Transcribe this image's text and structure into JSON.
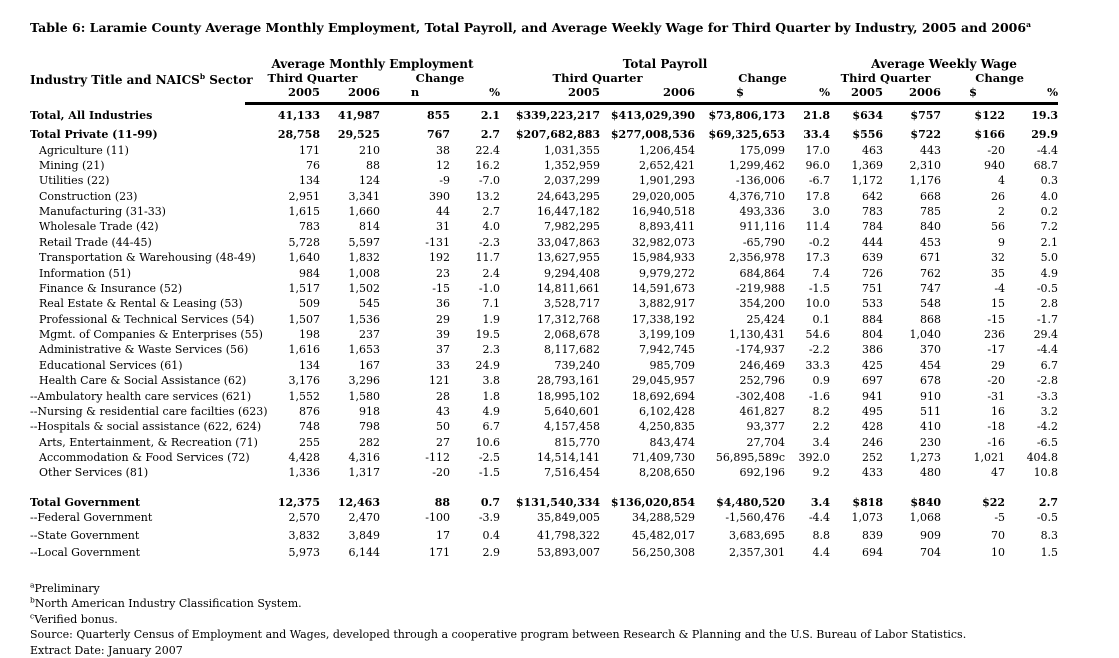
{
  "table": {
    "title": {
      "main": "Table 6:  Laramie County Average Monthly Employment, Total Payroll, and Average Weekly Wage for Third Quarter by Industry, 2005 and 2006",
      "sup": "a"
    },
    "header": {
      "industry_col": {
        "pre": "Industry Title and NAICS",
        "sup": "b",
        "post": " Sector"
      },
      "groups": [
        "Average Monthly Employment",
        "Total Payroll",
        "Average Weekly Wage"
      ],
      "sub": {
        "third_quarter": "Third Quarter",
        "change": "Change"
      },
      "cols": [
        "2005",
        "2006",
        "n",
        "%",
        "2005",
        "2006",
        "$",
        "%",
        "2005",
        "2006",
        "$",
        "%"
      ]
    },
    "rows": [
      {
        "label": "Total, All Industries",
        "bold": true,
        "indent": false,
        "gap": "",
        "values": [
          "41,133",
          "41,987",
          "855",
          "2.1",
          "$339,223,217",
          "$413,029,390",
          "$73,806,173",
          "21.8",
          "$634",
          "$757",
          "$122",
          "19.3"
        ]
      },
      {
        "label": "Total Private (11-99)",
        "bold": true,
        "indent": false,
        "gap": "gap-sm",
        "values": [
          "28,758",
          "29,525",
          "767",
          "2.7",
          "$207,682,883",
          "$277,008,536",
          "$69,325,653",
          "33.4",
          "$556",
          "$722",
          "$166",
          "29.9"
        ]
      },
      {
        "label": "Agriculture (11)",
        "bold": false,
        "indent": true,
        "gap": "",
        "values": [
          "171",
          "210",
          "38",
          "22.4",
          "1,031,355",
          "1,206,454",
          "175,099",
          "17.0",
          "463",
          "443",
          "-20",
          "-4.4"
        ]
      },
      {
        "label": "Mining (21)",
        "bold": false,
        "indent": true,
        "gap": "",
        "values": [
          "76",
          "88",
          "12",
          "16.2",
          "1,352,959",
          "2,652,421",
          "1,299,462",
          "96.0",
          "1,369",
          "2,310",
          "940",
          "68.7"
        ]
      },
      {
        "label": "Utilities (22)",
        "bold": false,
        "indent": true,
        "gap": "",
        "values": [
          "134",
          "124",
          "-9",
          "-7.0",
          "2,037,299",
          "1,901,293",
          "-136,006",
          "-6.7",
          "1,172",
          "1,176",
          "4",
          "0.3"
        ]
      },
      {
        "label": "Construction (23)",
        "bold": false,
        "indent": true,
        "gap": "",
        "values": [
          "2,951",
          "3,341",
          "390",
          "13.2",
          "24,643,295",
          "29,020,005",
          "4,376,710",
          "17.8",
          "642",
          "668",
          "26",
          "4.0"
        ]
      },
      {
        "label": "Manufacturing (31-33)",
        "bold": false,
        "indent": true,
        "gap": "",
        "values": [
          "1,615",
          "1,660",
          "44",
          "2.7",
          "16,447,182",
          "16,940,518",
          "493,336",
          "3.0",
          "783",
          "785",
          "2",
          "0.2"
        ]
      },
      {
        "label": "Wholesale Trade (42)",
        "bold": false,
        "indent": true,
        "gap": "",
        "values": [
          "783",
          "814",
          "31",
          "4.0",
          "7,982,295",
          "8,893,411",
          "911,116",
          "11.4",
          "784",
          "840",
          "56",
          "7.2"
        ]
      },
      {
        "label": "Retail Trade (44-45)",
        "bold": false,
        "indent": true,
        "gap": "",
        "values": [
          "5,728",
          "5,597",
          "-131",
          "-2.3",
          "33,047,863",
          "32,982,073",
          "-65,790",
          "-0.2",
          "444",
          "453",
          "9",
          "2.1"
        ]
      },
      {
        "label": "Transportation & Warehousing (48-49)",
        "bold": false,
        "indent": true,
        "gap": "",
        "values": [
          "1,640",
          "1,832",
          "192",
          "11.7",
          "13,627,955",
          "15,984,933",
          "2,356,978",
          "17.3",
          "639",
          "671",
          "32",
          "5.0"
        ]
      },
      {
        "label": "Information (51)",
        "bold": false,
        "indent": true,
        "gap": "",
        "values": [
          "984",
          "1,008",
          "23",
          "2.4",
          "9,294,408",
          "9,979,272",
          "684,864",
          "7.4",
          "726",
          "762",
          "35",
          "4.9"
        ]
      },
      {
        "label": "Finance & Insurance (52)",
        "bold": false,
        "indent": true,
        "gap": "",
        "values": [
          "1,517",
          "1,502",
          "-15",
          "-1.0",
          "14,811,661",
          "14,591,673",
          "-219,988",
          "-1.5",
          "751",
          "747",
          "-4",
          "-0.5"
        ]
      },
      {
        "label": "Real Estate & Rental & Leasing (53)",
        "bold": false,
        "indent": true,
        "gap": "",
        "values": [
          "509",
          "545",
          "36",
          "7.1",
          "3,528,717",
          "3,882,917",
          "354,200",
          "10.0",
          "533",
          "548",
          "15",
          "2.8"
        ]
      },
      {
        "label": "Professional & Technical Services (54)",
        "bold": false,
        "indent": true,
        "gap": "",
        "values": [
          "1,507",
          "1,536",
          "29",
          "1.9",
          "17,312,768",
          "17,338,192",
          "25,424",
          "0.1",
          "884",
          "868",
          "-15",
          "-1.7"
        ]
      },
      {
        "label": "Mgmt. of Companies & Enterprises (55)",
        "bold": false,
        "indent": true,
        "gap": "",
        "values": [
          "198",
          "237",
          "39",
          "19.5",
          "2,068,678",
          "3,199,109",
          "1,130,431",
          "54.6",
          "804",
          "1,040",
          "236",
          "29.4"
        ]
      },
      {
        "label": "Administrative & Waste Services (56)",
        "bold": false,
        "indent": true,
        "gap": "",
        "values": [
          "1,616",
          "1,653",
          "37",
          "2.3",
          "8,117,682",
          "7,942,745",
          "-174,937",
          "-2.2",
          "386",
          "370",
          "-17",
          "-4.4"
        ]
      },
      {
        "label": "Educational Services (61)",
        "bold": false,
        "indent": true,
        "gap": "",
        "values": [
          "134",
          "167",
          "33",
          "24.9",
          "739,240",
          "985,709",
          "246,469",
          "33.3",
          "425",
          "454",
          "29",
          "6.7"
        ]
      },
      {
        "label": "Health Care & Social Assistance (62)",
        "bold": false,
        "indent": true,
        "gap": "",
        "values": [
          "3,176",
          "3,296",
          "121",
          "3.8",
          "28,793,161",
          "29,045,957",
          "252,796",
          "0.9",
          "697",
          "678",
          "-20",
          "-2.8"
        ]
      },
      {
        "label": "--Ambulatory health care services (621)",
        "bold": false,
        "indent": false,
        "gap": "",
        "values": [
          "1,552",
          "1,580",
          "28",
          "1.8",
          "18,995,102",
          "18,692,694",
          "-302,408",
          "-1.6",
          "941",
          "910",
          "-31",
          "-3.3"
        ]
      },
      {
        "label": "--Nursing & residential care facilties (623)",
        "bold": false,
        "indent": false,
        "gap": "",
        "values": [
          "876",
          "918",
          "43",
          "4.9",
          "5,640,601",
          "6,102,428",
          "461,827",
          "8.2",
          "495",
          "511",
          "16",
          "3.2"
        ]
      },
      {
        "label": "--Hospitals & social assistance (622, 624)",
        "bold": false,
        "indent": false,
        "gap": "",
        "values": [
          "748",
          "798",
          "50",
          "6.7",
          "4,157,458",
          "4,250,835",
          "93,377",
          "2.2",
          "428",
          "410",
          "-18",
          "-4.2"
        ]
      },
      {
        "label": "Arts, Entertainment, & Recreation (71)",
        "bold": false,
        "indent": true,
        "gap": "",
        "values": [
          "255",
          "282",
          "27",
          "10.6",
          "815,770",
          "843,474",
          "27,704",
          "3.4",
          "246",
          "230",
          "-16",
          "-6.5"
        ]
      },
      {
        "label": "Accommodation & Food Services (72)",
        "bold": false,
        "indent": true,
        "gap": "",
        "values": [
          "4,428",
          "4,316",
          "-112",
          "-2.5",
          "14,514,141",
          "71,409,730",
          "56,895,589c",
          "392.0",
          "252",
          "1,273",
          "1,021",
          "404.8"
        ]
      },
      {
        "label": "Other Services  (81)",
        "bold": false,
        "indent": true,
        "gap": "",
        "values": [
          "1,336",
          "1,317",
          "-20",
          "-1.5",
          "7,516,454",
          "8,208,650",
          "692,196",
          "9.2",
          "433",
          "480",
          "47",
          "10.8"
        ]
      },
      {
        "label": "Total Government",
        "bold": true,
        "indent": false,
        "gap": "gap-lg",
        "values": [
          "12,375",
          "12,463",
          "88",
          "0.7",
          "$131,540,334",
          "$136,020,854",
          "$4,480,520",
          "3.4",
          "$818",
          "$840",
          "$22",
          "2.7"
        ]
      },
      {
        "label": "--Federal Government",
        "bold": false,
        "indent": false,
        "gap": "",
        "values": [
          "2,570",
          "2,470",
          "-100",
          "-3.9",
          "35,849,005",
          "34,288,529",
          "-1,560,476",
          "-4.4",
          "1,073",
          "1,068",
          "-5",
          "-0.5"
        ]
      },
      {
        "label": "--State Government",
        "bold": false,
        "indent": false,
        "gap": "gap-xs",
        "values": [
          "3,832",
          "3,849",
          "17",
          "0.4",
          "41,798,322",
          "45,482,017",
          "3,683,695",
          "8.8",
          "839",
          "909",
          "70",
          "8.3"
        ]
      },
      {
        "label": "--Local Government",
        "bold": false,
        "indent": false,
        "gap": "gap-xs",
        "values": [
          "5,973",
          "6,144",
          "171",
          "2.9",
          "53,893,007",
          "56,250,308",
          "2,357,301",
          "4.4",
          "694",
          "704",
          "10",
          "1.5"
        ]
      }
    ],
    "footnotes": [
      {
        "sup": "a",
        "text": "Preliminary"
      },
      {
        "sup": "b",
        "text": "North American Industry Classification System."
      },
      {
        "sup": "c",
        "text": "Verified bonus."
      },
      {
        "sup": "",
        "text": "Source: Quarterly Census of Employment and Wages, developed through a cooperative program between Research & Planning and the U.S. Bureau of Labor Statistics."
      },
      {
        "sup": "",
        "text": "Extract Date: January 2007"
      }
    ]
  }
}
